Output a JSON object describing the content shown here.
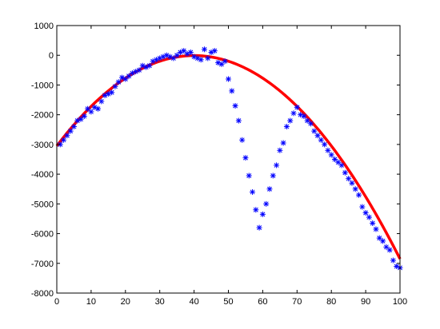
{
  "chart_data": {
    "type": "scatter",
    "title": "",
    "xlabel": "",
    "ylabel": "",
    "xlim": [
      0,
      100
    ],
    "ylim": [
      -8000,
      1000
    ],
    "xticks": [
      0,
      10,
      20,
      30,
      40,
      50,
      60,
      70,
      80,
      90,
      100
    ],
    "yticks": [
      1000,
      0,
      -1000,
      -2000,
      -3000,
      -4000,
      -5000,
      -6000,
      -7000,
      -8000
    ],
    "xtick_labels": [
      "0",
      "10",
      "20",
      "30",
      "40",
      "50",
      "60",
      "70",
      "80",
      "90",
      "100"
    ],
    "ytick_labels": [
      "1000",
      "0",
      "-1000",
      "-2000",
      "-3000",
      "-4000",
      "-5000",
      "-6000",
      "-7000",
      "-8000"
    ],
    "grid": false,
    "series": [
      {
        "kind": "scatter",
        "marker": "asterisk",
        "color": "#0000ff",
        "x": [
          1,
          2,
          3,
          4,
          5,
          6,
          7,
          8,
          9,
          10,
          11,
          12,
          13,
          14,
          15,
          16,
          17,
          18,
          19,
          20,
          21,
          22,
          23,
          24,
          25,
          26,
          27,
          28,
          29,
          30,
          31,
          32,
          33,
          34,
          35,
          36,
          37,
          38,
          39,
          40,
          41,
          42,
          43,
          44,
          45,
          46,
          47,
          48,
          49,
          50,
          51,
          52,
          53,
          54,
          55,
          56,
          57,
          58,
          59,
          60,
          61,
          62,
          63,
          64,
          65,
          66,
          67,
          68,
          69,
          70,
          71,
          72,
          73,
          74,
          75,
          76,
          77,
          78,
          79,
          80,
          81,
          82,
          83,
          84,
          85,
          86,
          87,
          88,
          89,
          90,
          91,
          92,
          93,
          94,
          95,
          96,
          97,
          98,
          99,
          100
        ],
        "y": [
          -3000,
          -2850,
          -2700,
          -2550,
          -2400,
          -2200,
          -2150,
          -2050,
          -1800,
          -1900,
          -1750,
          -1800,
          -1550,
          -1350,
          -1300,
          -1250,
          -1050,
          -900,
          -750,
          -800,
          -700,
          -600,
          -550,
          -500,
          -350,
          -400,
          -350,
          -200,
          -150,
          -100,
          -50,
          0,
          -50,
          -100,
          0,
          100,
          150,
          50,
          100,
          -50,
          -100,
          -150,
          200,
          -100,
          100,
          150,
          -250,
          -300,
          -200,
          -800,
          -1200,
          -1700,
          -2200,
          -2850,
          -3450,
          -4050,
          -4600,
          -5200,
          -5800,
          -5350,
          -5000,
          -4500,
          -4050,
          -3700,
          -3200,
          -2950,
          -2400,
          -2200,
          -1950,
          -1750,
          -2000,
          -2050,
          -2200,
          -2300,
          -2550,
          -2700,
          -2850,
          -3000,
          -3200,
          -3350,
          -3500,
          -3600,
          -3700,
          -3950,
          -4150,
          -4300,
          -4500,
          -4700,
          -5100,
          -5300,
          -5450,
          -5650,
          -5850,
          -6150,
          -6250,
          -6450,
          -6550,
          -6900,
          -7100,
          -7150
        ]
      },
      {
        "kind": "line",
        "color": "#ff0000",
        "fit": "quadratic",
        "coefficients": [
          -1.9,
          152,
          -3050
        ]
      }
    ]
  }
}
